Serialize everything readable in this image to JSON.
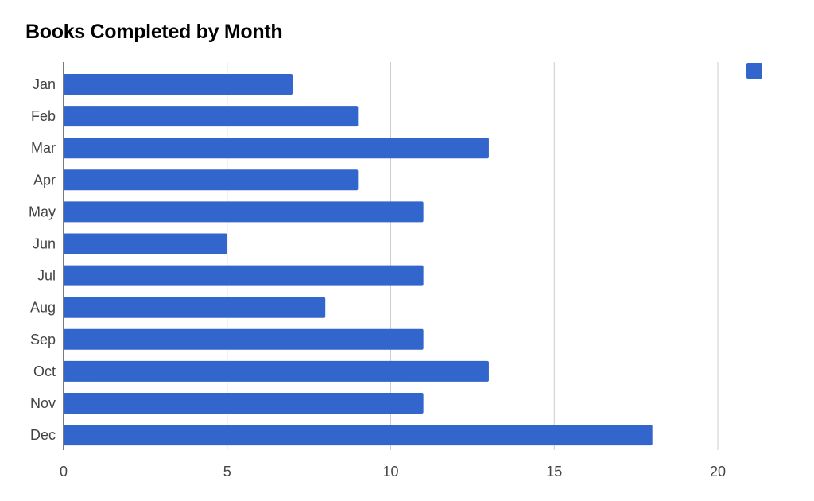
{
  "chart_data": {
    "type": "bar",
    "orientation": "horizontal",
    "title": "Books Completed by Month",
    "xlabel": "",
    "ylabel": "",
    "categories": [
      "Jan",
      "Feb",
      "Mar",
      "Apr",
      "May",
      "Jun",
      "Jul",
      "Aug",
      "Sep",
      "Oct",
      "Nov",
      "Dec"
    ],
    "series": [
      {
        "values": [
          7,
          9,
          13,
          9,
          11,
          5,
          11,
          8,
          11,
          13,
          11,
          18
        ]
      }
    ],
    "xlim": [
      0,
      20
    ],
    "xticks": [
      0,
      5,
      10,
      15,
      20
    ],
    "grid": true,
    "legend": "top-right",
    "colors": {
      "bar": "#3366cc",
      "grid": "#cccccc",
      "axis": "#333333",
      "label": "#444444"
    }
  }
}
